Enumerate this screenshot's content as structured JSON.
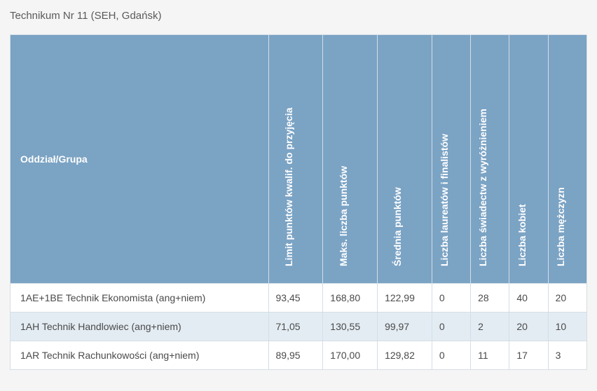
{
  "title": "Technikum Nr 11 (SEH, Gdańsk)",
  "table": {
    "columns": [
      "Oddział/Grupa",
      "Limit punktów kwalif. do przyjęcia",
      "Maks. liczba punktów",
      "Średnia punktów",
      "Liczba laureatów i finalistów",
      "Liczba świadectw z wyróżnieniem",
      "Liczba kobiet",
      "Liczba mężczyzn"
    ],
    "rows": [
      [
        "1AE+1BE Technik Ekonomista (ang+niem)",
        "93,45",
        "168,80",
        "122,99",
        "0",
        "28",
        "40",
        "20"
      ],
      [
        "1AH Technik Handlowiec (ang+niem)",
        "71,05",
        "130,55",
        "99,97",
        "0",
        "2",
        "20",
        "10"
      ],
      [
        "1AR Technik Rachunkowości (ang+niem)",
        "89,95",
        "170,00",
        "129,82",
        "0",
        "11",
        "17",
        "3"
      ]
    ],
    "header_bg": "#7ba3c4",
    "header_text_color": "#ffffff",
    "row_alt_bg": "#e3ecf3",
    "row_bg": "#ffffff",
    "border_color": "#d4dee6",
    "body_text_color": "#4a4a4a",
    "title_color": "#5a5a5a",
    "font_size_header": 14,
    "font_size_body": 14
  }
}
